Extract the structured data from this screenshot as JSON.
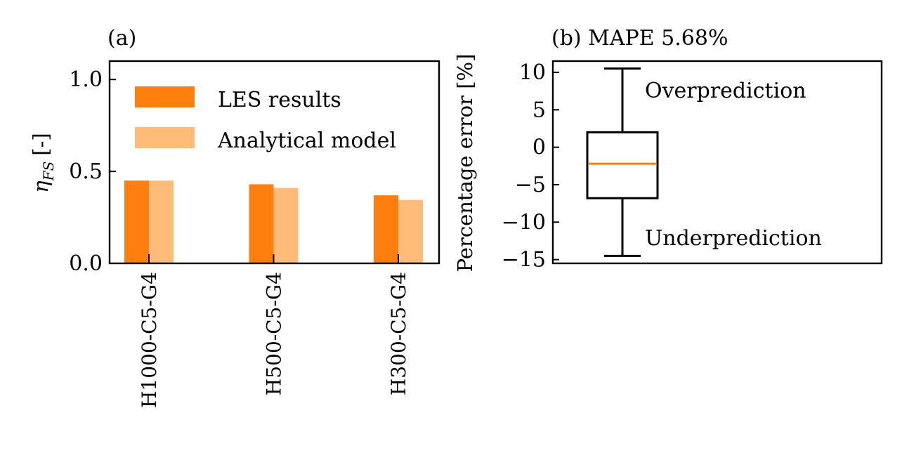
{
  "chart_data": [
    {
      "type": "bar",
      "title": "(a)",
      "ylabel": "η",
      "ylabel_sub": "FS",
      "ylabel_suffix": "[-]",
      "xlabel": "",
      "categories": [
        "H1000-C5-G4",
        "H500-C5-G4",
        "H300-C5-G4"
      ],
      "series": [
        {
          "name": "LES results",
          "values": [
            0.45,
            0.43,
            0.37
          ],
          "color": "#ff7f0e"
        },
        {
          "name": "Analytical model",
          "values": [
            0.45,
            0.41,
            0.345
          ],
          "color": "#ffbb78"
        }
      ],
      "ylim": [
        0,
        1.1
      ],
      "yticks": [
        0.0,
        0.5,
        1.0
      ],
      "ytick_labels": [
        "0.0",
        "0.5",
        "1.0"
      ],
      "legend_position": "top-left",
      "grid": false
    },
    {
      "type": "box",
      "title": "(b) MAPE 5.68%",
      "ylabel": "Percentage error [%]",
      "xlabel": "",
      "box": {
        "whisker_low": -14.5,
        "q1": -6.8,
        "median": -2.2,
        "q3": 2.0,
        "whisker_high": 10.5
      },
      "median_color": "#ff7f0e",
      "ylim": [
        -15.5,
        11.5
      ],
      "yticks": [
        10,
        5,
        0,
        -5,
        -10,
        -15
      ],
      "ytick_labels": [
        "10",
        "5",
        "0",
        "−5",
        "−10",
        "−15"
      ],
      "annotations": [
        "Overprediction",
        "Underprediction"
      ],
      "grid": false
    }
  ]
}
